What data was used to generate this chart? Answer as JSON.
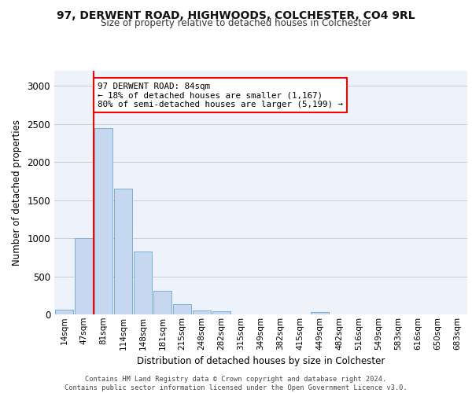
{
  "title1": "97, DERWENT ROAD, HIGHWOODS, COLCHESTER, CO4 9RL",
  "title2": "Size of property relative to detached houses in Colchester",
  "xlabel": "Distribution of detached houses by size in Colchester",
  "ylabel": "Number of detached properties",
  "bin_labels": [
    "14sqm",
    "47sqm",
    "81sqm",
    "114sqm",
    "148sqm",
    "181sqm",
    "215sqm",
    "248sqm",
    "282sqm",
    "315sqm",
    "349sqm",
    "382sqm",
    "415sqm",
    "449sqm",
    "482sqm",
    "516sqm",
    "549sqm",
    "583sqm",
    "616sqm",
    "650sqm",
    "683sqm"
  ],
  "bar_heights": [
    60,
    1000,
    2450,
    1650,
    830,
    310,
    130,
    55,
    45,
    0,
    0,
    0,
    0,
    35,
    0,
    0,
    0,
    0,
    0,
    0,
    0
  ],
  "bar_color": "#c5d8f0",
  "bar_edgecolor": "#7aafd4",
  "grid_color": "#cccccc",
  "vline_color": "red",
  "annotation_text": "97 DERWENT ROAD: 84sqm\n← 18% of detached houses are smaller (1,167)\n80% of semi-detached houses are larger (5,199) →",
  "annotation_box_edgecolor": "red",
  "footer_text": "Contains HM Land Registry data © Crown copyright and database right 2024.\nContains public sector information licensed under the Open Government Licence v3.0.",
  "ylim": [
    0,
    3200
  ],
  "yticks": [
    0,
    500,
    1000,
    1500,
    2000,
    2500,
    3000
  ],
  "bg_color": "#edf2fb"
}
